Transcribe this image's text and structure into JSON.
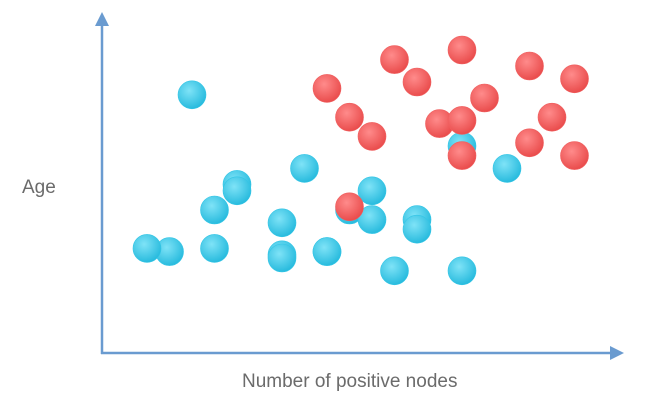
{
  "chart_data": {
    "type": "scatter",
    "title": "",
    "xlabel": "Number of positive nodes",
    "ylabel": "Age",
    "grid": false,
    "legend": "none",
    "axis_color": "#6a9bd0",
    "series": [
      {
        "color": "#34c6e6",
        "points": [
          [
            4,
            81
          ],
          [
            8,
            31
          ],
          [
            18,
            58
          ],
          [
            6,
            53
          ],
          [
            9,
            58
          ],
          [
            11,
            45
          ],
          [
            6,
            51
          ],
          [
            5,
            45
          ],
          [
            3,
            32
          ],
          [
            8,
            41
          ],
          [
            10,
            32
          ],
          [
            12,
            51
          ],
          [
            12,
            42
          ],
          [
            10,
            32
          ],
          [
            14,
            42
          ],
          [
            14,
            39
          ],
          [
            16,
            65
          ],
          [
            2,
            33
          ],
          [
            5,
            33
          ],
          [
            8,
            30
          ],
          [
            13,
            26
          ],
          [
            16,
            26
          ]
        ]
      },
      {
        "color": "#f05f5f",
        "points": [
          [
            13,
            92
          ],
          [
            16,
            95
          ],
          [
            19,
            90
          ],
          [
            14,
            85
          ],
          [
            21,
            86
          ],
          [
            10,
            83
          ],
          [
            17,
            80
          ],
          [
            11,
            74
          ],
          [
            15,
            72
          ],
          [
            16,
            73
          ],
          [
            20,
            74
          ],
          [
            12,
            68
          ],
          [
            19,
            66
          ],
          [
            21,
            62
          ],
          [
            16,
            62
          ],
          [
            11,
            46
          ]
        ]
      }
    ]
  }
}
